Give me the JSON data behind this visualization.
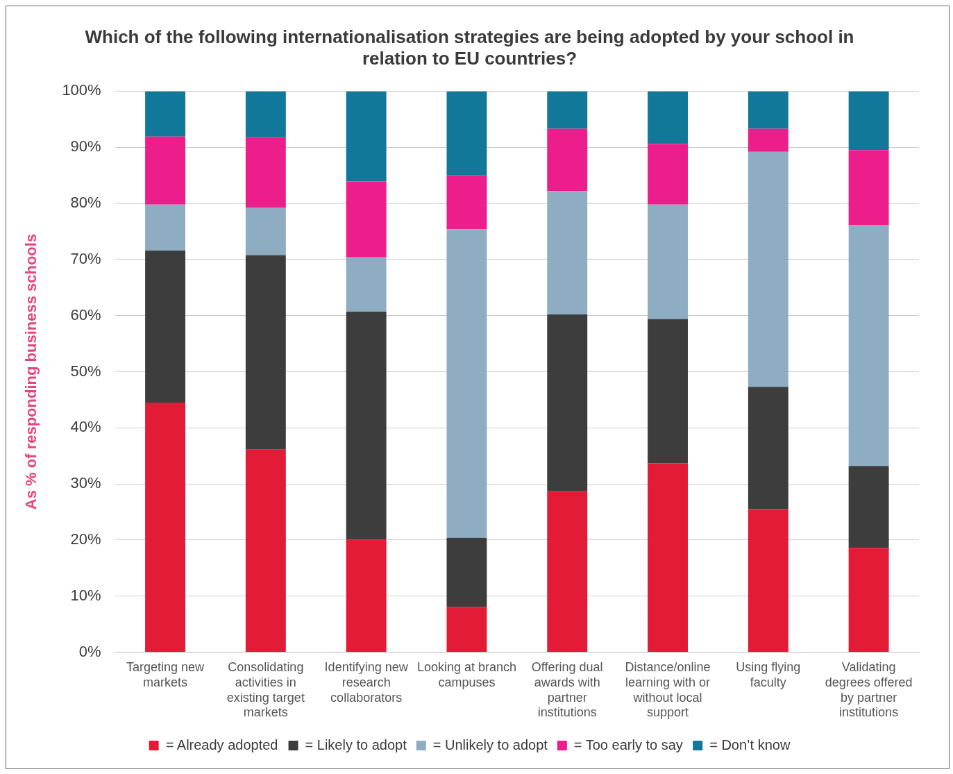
{
  "chart_data": {
    "type": "bar",
    "stacked": true,
    "title": "Which of the following internationalisation strategies are being adopted by your school in relation to EU countries?",
    "ylabel": "As % of responding business schools",
    "categories": [
      "Targeting new markets",
      "Consolidating activities in existing target markets",
      "Identifying new research collaborators",
      "Looking at branch campuses",
      "Offering dual awards with partner institutions",
      "Distance/online learning with or without local support",
      "Using flying faculty",
      "Validating degrees offered by partner institutions"
    ],
    "series": [
      {
        "name": "= Already adopted",
        "color": "#e31b36",
        "values": [
          44.5,
          36.1,
          20.1,
          8.1,
          28.7,
          33.7,
          25.5,
          18.6
        ]
      },
      {
        "name": "= Likely to adopt",
        "color": "#3d3d3d",
        "values": [
          27.1,
          34.7,
          40.6,
          12.3,
          31.5,
          25.7,
          21.8,
          14.6
        ]
      },
      {
        "name": "= Unlikely to adopt",
        "color": "#8eadc3",
        "values": [
          8.2,
          8.4,
          9.7,
          55.0,
          22.0,
          20.4,
          41.9,
          42.9
        ]
      },
      {
        "name": "= Too early to say",
        "color": "#ec1e8b",
        "values": [
          12.1,
          12.6,
          13.5,
          9.6,
          11.1,
          10.8,
          4.1,
          13.4
        ]
      },
      {
        "name": "= Don’t know",
        "color": "#12789a",
        "values": [
          8.1,
          8.2,
          16.1,
          15.0,
          6.7,
          9.4,
          6.7,
          10.5
        ]
      }
    ],
    "ylim": [
      0,
      100
    ],
    "yticks": [
      {
        "value": 0,
        "label": "0%"
      },
      {
        "value": 10,
        "label": "10%"
      },
      {
        "value": 20,
        "label": "20%"
      },
      {
        "value": 30,
        "label": "30%"
      },
      {
        "value": 40,
        "label": "40%"
      },
      {
        "value": 50,
        "label": "50%"
      },
      {
        "value": 60,
        "label": "60%"
      },
      {
        "value": 70,
        "label": "70%"
      },
      {
        "value": 80,
        "label": "80%"
      },
      {
        "value": 90,
        "label": "90%"
      },
      {
        "value": 100,
        "label": "100%"
      }
    ],
    "grid": "y",
    "legend": "bottom"
  }
}
